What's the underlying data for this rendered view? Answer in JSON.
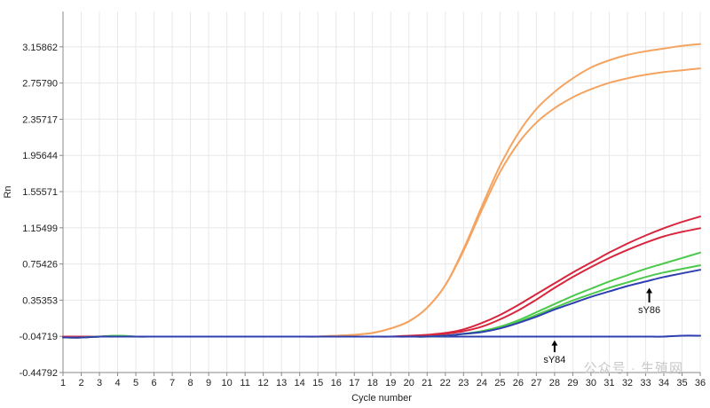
{
  "chart_data": {
    "type": "line",
    "xlabel": "Cycle number",
    "ylabel": "Rn",
    "xlim": [
      1,
      36
    ],
    "ylim": [
      -0.44792,
      3.55
    ],
    "grid": true,
    "x_ticks": [
      1,
      2,
      3,
      4,
      5,
      6,
      7,
      8,
      9,
      10,
      11,
      12,
      13,
      14,
      15,
      16,
      17,
      18,
      19,
      20,
      21,
      22,
      23,
      24,
      25,
      26,
      27,
      28,
      29,
      30,
      31,
      32,
      33,
      34,
      35,
      36
    ],
    "y_ticks": [
      -0.44792,
      -0.04719,
      0.35353,
      0.75426,
      1.15499,
      1.55571,
      1.95644,
      2.35717,
      2.7579,
      3.15862
    ],
    "y_tick_labels": [
      "-0.44792",
      "-0.04719",
      "0.35353",
      "0.75426",
      "1.15499",
      "1.55571",
      "1.95644",
      "2.35717",
      "2.75790",
      "3.15862"
    ],
    "x": [
      1,
      2,
      3,
      4,
      5,
      6,
      7,
      8,
      9,
      10,
      11,
      12,
      13,
      14,
      15,
      16,
      17,
      18,
      19,
      20,
      21,
      22,
      23,
      24,
      25,
      26,
      27,
      28,
      29,
      30,
      31,
      32,
      33,
      34,
      35,
      36
    ],
    "series": [
      {
        "color": "#f4a460",
        "values": [
          -0.06,
          -0.06,
          -0.05,
          -0.05,
          -0.05,
          -0.05,
          -0.05,
          -0.05,
          -0.05,
          -0.05,
          -0.05,
          -0.05,
          -0.05,
          -0.05,
          -0.05,
          -0.04,
          -0.03,
          -0.01,
          0.04,
          0.12,
          0.27,
          0.52,
          0.92,
          1.39,
          1.84,
          2.2,
          2.47,
          2.66,
          2.81,
          2.93,
          3.01,
          3.07,
          3.11,
          3.14,
          3.17,
          3.19
        ]
      },
      {
        "color": "#f4a460",
        "values": [
          -0.06,
          -0.06,
          -0.05,
          -0.05,
          -0.05,
          -0.05,
          -0.05,
          -0.05,
          -0.05,
          -0.05,
          -0.05,
          -0.05,
          -0.05,
          -0.05,
          -0.05,
          -0.04,
          -0.03,
          -0.01,
          0.04,
          0.12,
          0.27,
          0.52,
          0.9,
          1.35,
          1.77,
          2.09,
          2.32,
          2.48,
          2.6,
          2.69,
          2.76,
          2.81,
          2.85,
          2.88,
          2.9,
          2.92
        ]
      },
      {
        "color": "#d7263d",
        "values": [
          -0.05,
          -0.05,
          -0.05,
          -0.05,
          -0.05,
          -0.05,
          -0.05,
          -0.05,
          -0.05,
          -0.05,
          -0.05,
          -0.05,
          -0.05,
          -0.05,
          -0.05,
          -0.05,
          -0.05,
          -0.05,
          -0.05,
          -0.04,
          -0.03,
          -0.01,
          0.03,
          0.1,
          0.19,
          0.3,
          0.42,
          0.54,
          0.66,
          0.77,
          0.88,
          0.98,
          1.07,
          1.15,
          1.22,
          1.28
        ]
      },
      {
        "color": "#d7263d",
        "values": [
          -0.05,
          -0.05,
          -0.05,
          -0.05,
          -0.05,
          -0.05,
          -0.05,
          -0.05,
          -0.05,
          -0.05,
          -0.05,
          -0.05,
          -0.05,
          -0.05,
          -0.05,
          -0.05,
          -0.05,
          -0.05,
          -0.05,
          -0.05,
          -0.04,
          -0.02,
          0.01,
          0.06,
          0.14,
          0.24,
          0.36,
          0.49,
          0.61,
          0.72,
          0.82,
          0.91,
          0.99,
          1.06,
          1.11,
          1.15
        ]
      },
      {
        "color": "#4cc94c",
        "values": [
          -0.06,
          -0.06,
          -0.05,
          -0.04,
          -0.05,
          -0.05,
          -0.05,
          -0.05,
          -0.05,
          -0.05,
          -0.05,
          -0.05,
          -0.05,
          -0.05,
          -0.05,
          -0.05,
          -0.05,
          -0.05,
          -0.05,
          -0.05,
          -0.05,
          -0.04,
          -0.02,
          0.01,
          0.06,
          0.13,
          0.22,
          0.31,
          0.4,
          0.48,
          0.56,
          0.63,
          0.7,
          0.76,
          0.82,
          0.88
        ]
      },
      {
        "color": "#4cc94c",
        "values": [
          -0.06,
          -0.06,
          -0.05,
          -0.04,
          -0.05,
          -0.05,
          -0.05,
          -0.05,
          -0.05,
          -0.05,
          -0.05,
          -0.05,
          -0.05,
          -0.05,
          -0.05,
          -0.05,
          -0.05,
          -0.05,
          -0.05,
          -0.05,
          -0.05,
          -0.04,
          -0.02,
          0.0,
          0.05,
          0.11,
          0.19,
          0.27,
          0.35,
          0.42,
          0.49,
          0.55,
          0.61,
          0.66,
          0.7,
          0.74
        ]
      },
      {
        "color": "#2f3fb0",
        "values": [
          -0.06,
          -0.06,
          -0.05,
          -0.05,
          -0.05,
          -0.05,
          -0.05,
          -0.05,
          -0.05,
          -0.05,
          -0.05,
          -0.05,
          -0.05,
          -0.05,
          -0.05,
          -0.05,
          -0.05,
          -0.05,
          -0.05,
          -0.05,
          -0.05,
          -0.04,
          -0.02,
          0.0,
          0.04,
          0.1,
          0.17,
          0.25,
          0.32,
          0.39,
          0.45,
          0.51,
          0.56,
          0.61,
          0.65,
          0.69
        ]
      },
      {
        "color": "#2f3fb0",
        "values": [
          -0.06,
          -0.06,
          -0.05,
          -0.05,
          -0.05,
          -0.05,
          -0.05,
          -0.05,
          -0.05,
          -0.05,
          -0.05,
          -0.05,
          -0.05,
          -0.05,
          -0.05,
          -0.05,
          -0.05,
          -0.05,
          -0.05,
          -0.05,
          -0.05,
          -0.05,
          -0.05,
          -0.05,
          -0.05,
          -0.05,
          -0.05,
          -0.05,
          -0.05,
          -0.05,
          -0.05,
          -0.05,
          -0.05,
          -0.05,
          -0.04,
          -0.04
        ]
      }
    ],
    "annotations": [
      {
        "text": "sY86",
        "x": 33.2,
        "y": 0.21,
        "arrow_tip_y": 0.49
      },
      {
        "text": "sY84",
        "x": 28.0,
        "y": -0.34,
        "arrow_tip_y": -0.09
      }
    ]
  },
  "watermark": {
    "text": "公众号 · 生殖网"
  },
  "colors": {
    "grid": "#e8e8e8",
    "axis": "#888888",
    "text": "#222222"
  }
}
